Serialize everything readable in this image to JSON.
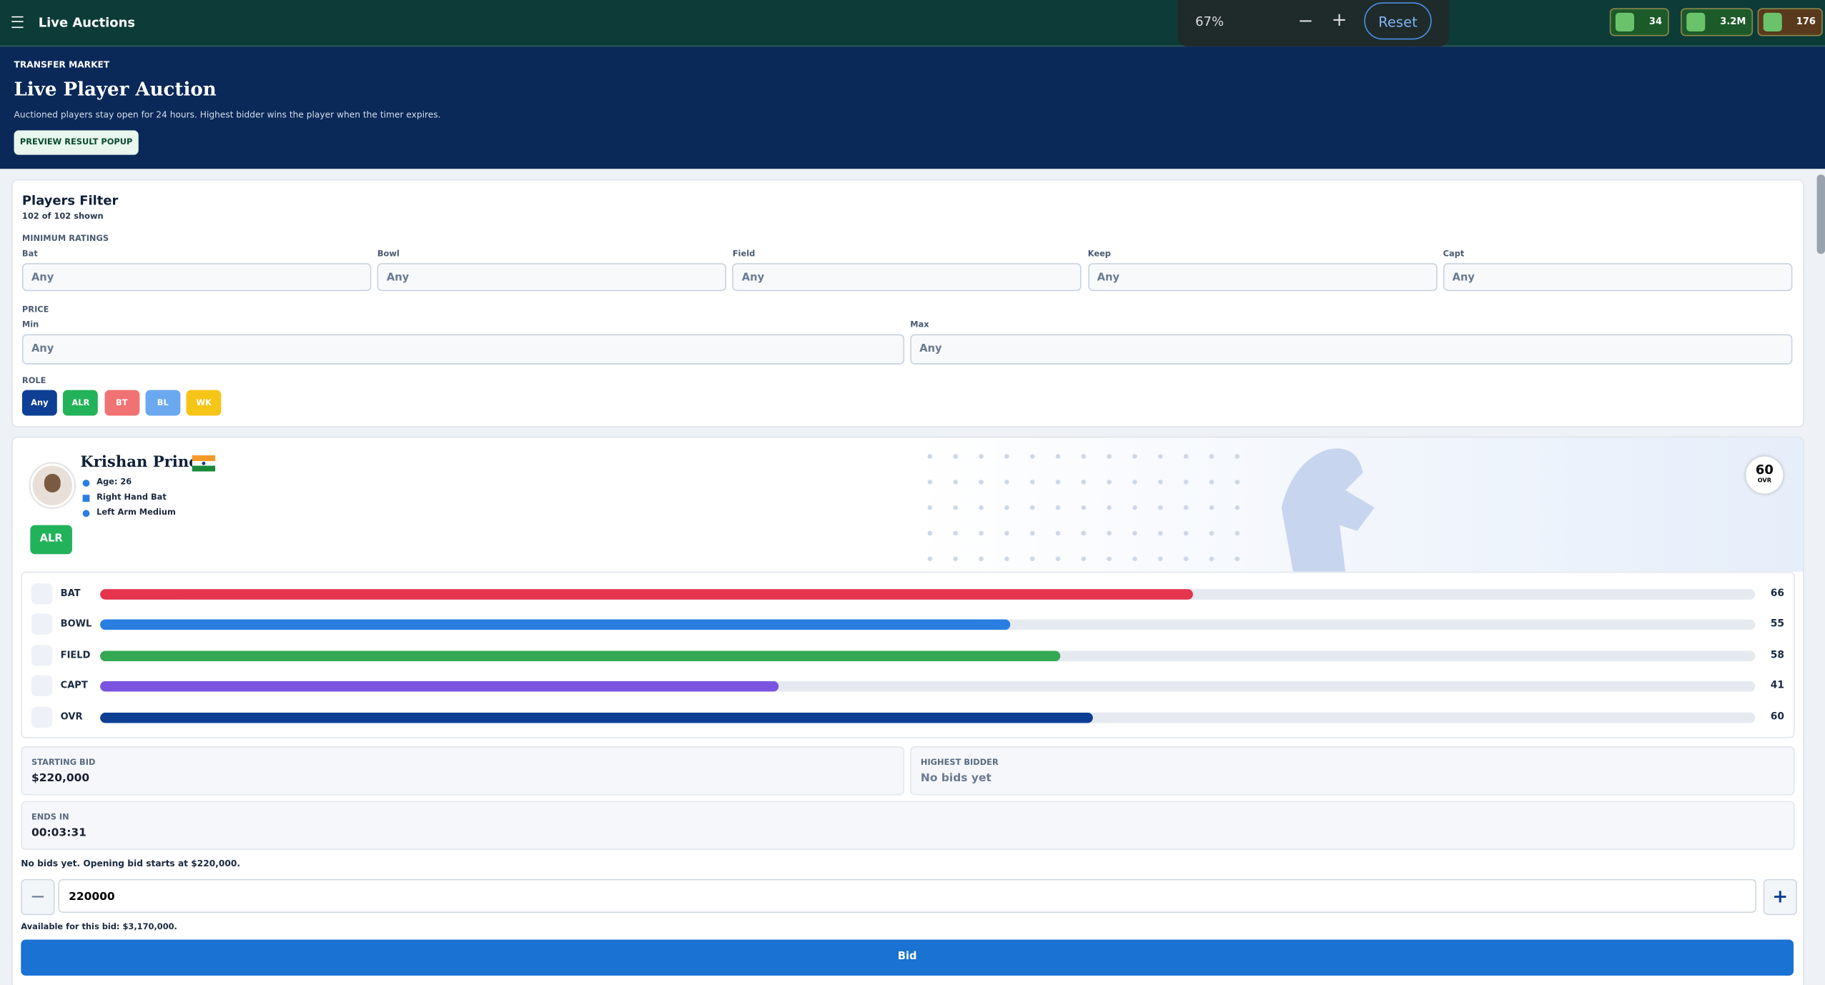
{
  "topbar": {
    "title": "Live Auctions",
    "zoom": "67%",
    "reset": "Reset",
    "currencies": [
      "34",
      "3.2M",
      "176"
    ]
  },
  "hero": {
    "eyebrow": "TRANSFER MARKET",
    "title": "Live Player Auction",
    "description": "Auctioned players stay open for 24 hours. Highest bidder wins the player when the timer expires.",
    "button": "PREVIEW RESULT POPUP"
  },
  "filter": {
    "title": "Players Filter",
    "count": "102 of 102 shown",
    "ratings_label": "MINIMUM RATINGS",
    "ratings": [
      {
        "label": "Bat",
        "placeholder": "Any"
      },
      {
        "label": "Bowl",
        "placeholder": "Any"
      },
      {
        "label": "Field",
        "placeholder": "Any"
      },
      {
        "label": "Keep",
        "placeholder": "Any"
      },
      {
        "label": "Capt",
        "placeholder": "Any"
      }
    ],
    "price_label": "PRICE",
    "price": [
      {
        "label": "Min",
        "placeholder": "Any"
      },
      {
        "label": "Max",
        "placeholder": "Any"
      }
    ],
    "role_label": "ROLE",
    "roles": [
      {
        "label": "Any",
        "color": "#0d3f94"
      },
      {
        "label": "ALR",
        "color": "#22b35a"
      },
      {
        "label": "BT",
        "color": "#f07272"
      },
      {
        "label": "BL",
        "color": "#6aa8f0"
      },
      {
        "label": "WK",
        "color": "#f5c518"
      }
    ]
  },
  "player": {
    "name": "Krishan Prince",
    "age": "Age: 26",
    "batting": "Right Hand Bat",
    "bowling": "Left Arm Medium",
    "role": "ALR",
    "ovr": 60,
    "ovr_label": "OVR",
    "stats": [
      {
        "label": "BAT",
        "value": 66,
        "color": "#e5344e"
      },
      {
        "label": "BOWL",
        "value": 55,
        "color": "#2a7de1"
      },
      {
        "label": "FIELD",
        "value": 58,
        "color": "#34a853"
      },
      {
        "label": "CAPT",
        "value": 41,
        "color": "#7b55e0"
      },
      {
        "label": "OVR",
        "value": 60,
        "color": "#0d3f94"
      }
    ]
  },
  "bid": {
    "starting_label": "STARTING BID",
    "starting": "$220,000",
    "highest_label": "HIGHEST BIDDER",
    "highest": "No bids yet",
    "ends_label": "ENDS IN",
    "ends": "00:03:31",
    "note": "No bids yet. Opening bid starts at $220,000.",
    "input": "220000",
    "available": "Available for this bid: $3,170,000.",
    "button": "Bid"
  }
}
